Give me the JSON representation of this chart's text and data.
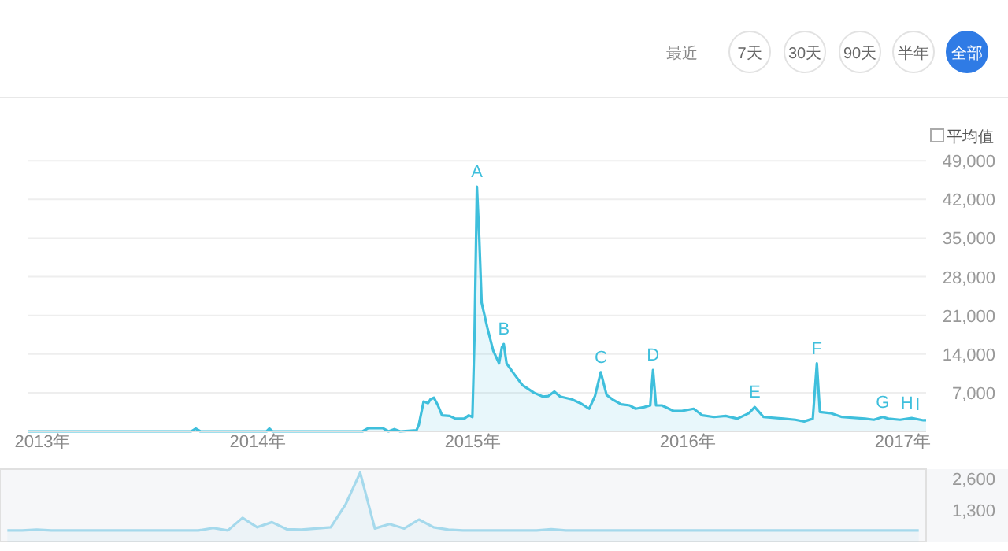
{
  "chart_data": [
    {
      "type": "area",
      "color": "#3fbfdc",
      "annotations": [
        "最近",
        "7天",
        "30天",
        "90天",
        "半年",
        "全部",
        "平均值",
        {
          "text": "A",
          "x": 2015.02,
          "y": 44300
        },
        {
          "text": "B",
          "x": 2015.145,
          "y": 15800
        },
        {
          "text": "C",
          "x": 2015.596,
          "y": 10700
        },
        {
          "text": "D",
          "x": 2015.839,
          "y": 11100
        },
        {
          "text": "E",
          "x": 2016.312,
          "y": 4400
        },
        {
          "text": "F",
          "x": 2016.601,
          "y": 12300
        },
        {
          "text": "G",
          "x": 2016.907,
          "y": 2600
        },
        {
          "text": "H",
          "x": 2017.02,
          "y": 2400
        },
        {
          "text": "I",
          "x": 2017.07,
          "y": 2100
        }
      ],
      "x": [
        2012.934,
        2013.691,
        2013.712,
        2013.734,
        2014.042,
        2014.055,
        2014.069,
        2014.488,
        2014.515,
        2014.582,
        2014.609,
        2014.636,
        2014.663,
        2014.739,
        2014.75,
        2014.772,
        2014.793,
        2014.804,
        2014.82,
        2014.839,
        2014.858,
        2014.893,
        2014.92,
        2014.961,
        2014.982,
        2014.999,
        2015.009,
        2015.02,
        2015.031,
        2015.042,
        2015.069,
        2015.096,
        2015.123,
        2015.136,
        2015.145,
        2015.158,
        2015.191,
        2015.231,
        2015.285,
        2015.326,
        2015.353,
        2015.38,
        2015.407,
        2015.461,
        2015.501,
        2015.542,
        2015.569,
        2015.596,
        2015.623,
        2015.65,
        2015.691,
        2015.731,
        2015.758,
        2015.799,
        2015.826,
        2015.839,
        2015.853,
        2015.88,
        2015.934,
        2015.974,
        2016.028,
        2016.069,
        2016.123,
        2016.177,
        2016.231,
        2016.285,
        2016.312,
        2016.353,
        2016.447,
        2016.501,
        2016.542,
        2016.582,
        2016.601,
        2016.615,
        2016.664,
        2016.718,
        2016.826,
        2016.866,
        2016.907,
        2016.934,
        2016.988,
        2017.042,
        2017.096,
        2017.109
      ],
      "values": [
        0,
        0,
        500,
        0,
        0,
        500,
        0,
        0,
        600,
        600,
        0,
        400,
        0,
        200,
        1200,
        5400,
        5100,
        5800,
        6100,
        4700,
        2900,
        2800,
        2300,
        2300,
        2900,
        2600,
        17500,
        44300,
        35000,
        23300,
        18700,
        14600,
        12300,
        15200,
        15800,
        12300,
        10500,
        8400,
        7000,
        6300,
        6400,
        7200,
        6300,
        5800,
        5100,
        4100,
        6400,
        10700,
        6600,
        5800,
        4900,
        4700,
        4100,
        4400,
        4700,
        11100,
        4700,
        4700,
        3700,
        3700,
        4100,
        2900,
        2600,
        2800,
        2300,
        3300,
        4400,
        2600,
        2300,
        2100,
        1800,
        2300,
        12300,
        3500,
        3300,
        2600,
        2300,
        2100,
        2600,
        2300,
        2100,
        2400,
        2000,
        2000
      ],
      "xlim": [
        2012.934,
        2017.109
      ],
      "ylim": [
        0,
        49600
      ],
      "xticks": [
        {
          "value": 2013,
          "label": "2013年"
        },
        {
          "value": 2014,
          "label": "2014年"
        },
        {
          "value": 2015,
          "label": "2015年"
        },
        {
          "value": 2016,
          "label": "2016年"
        },
        {
          "value": 2017,
          "label": "2017年"
        }
      ],
      "yticks": [
        {
          "value": 7000,
          "label": "7,000"
        },
        {
          "value": 14000,
          "label": "14,000"
        },
        {
          "value": 21000,
          "label": "21,000"
        },
        {
          "value": 28000,
          "label": "28,000"
        },
        {
          "value": 35000,
          "label": "35,000"
        },
        {
          "value": 42000,
          "label": "42,000"
        },
        {
          "value": 49000,
          "label": "49,000"
        }
      ],
      "grid": "y"
    },
    {
      "type": "area",
      "color": "#a5d9ec",
      "tick_labels": "y",
      "categories": [
        null,
        null,
        null,
        null,
        null,
        null,
        null,
        null,
        null,
        null,
        null,
        null,
        null,
        null,
        null,
        null,
        null,
        null,
        null,
        null,
        null,
        null,
        null,
        null,
        null,
        null,
        null,
        null,
        null,
        null,
        null,
        null,
        null,
        null,
        null,
        null,
        null,
        null,
        null,
        null,
        null,
        null,
        null,
        null,
        null,
        null,
        null,
        null,
        null,
        null,
        null,
        null,
        null,
        null,
        null,
        null,
        null,
        null,
        null,
        null,
        null,
        null,
        null
      ],
      "values": [
        460,
        460,
        490,
        460,
        460,
        460,
        460,
        460,
        460,
        460,
        460,
        460,
        460,
        460,
        560,
        460,
        980,
        590,
        800,
        510,
        490,
        540,
        590,
        1520,
        2850,
        540,
        720,
        540,
        910,
        590,
        490,
        460,
        460,
        460,
        460,
        460,
        460,
        510,
        460,
        460,
        460,
        460,
        460,
        460,
        460,
        460,
        460,
        460,
        460,
        460,
        460,
        460,
        460,
        460,
        460,
        460,
        460,
        460,
        460,
        460,
        460,
        460,
        460
      ],
      "ylim": [
        0,
        2990
      ],
      "yticks": [
        {
          "value": 1300,
          "label": "1,300"
        },
        {
          "value": 2600,
          "label": "2,600"
        }
      ]
    }
  ]
}
